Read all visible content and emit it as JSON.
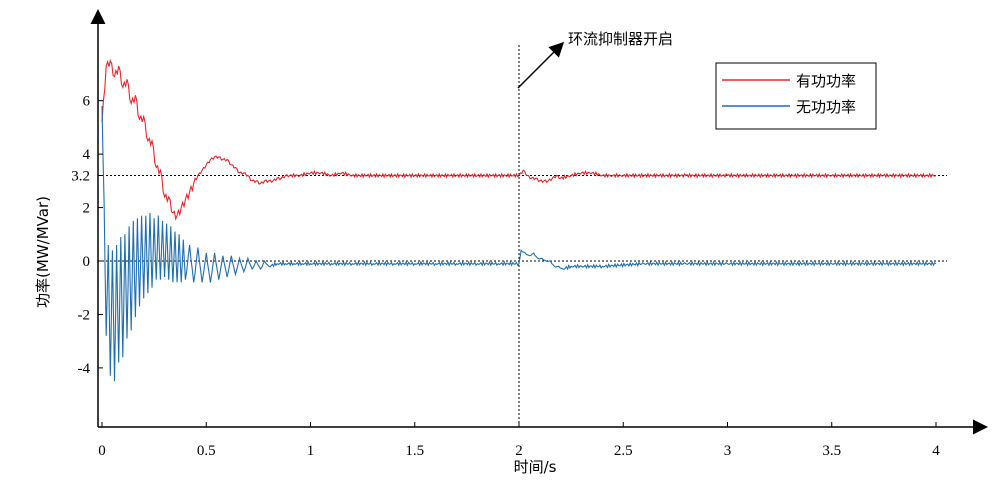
{
  "chart_data": {
    "type": "line",
    "xlabel": "时间/s",
    "ylabel": "功率(MW/MVar)",
    "xlim": [
      0,
      4.2
    ],
    "ylim": [
      -6.2,
      9.3
    ],
    "x_ticks": [
      0,
      0.5,
      1,
      1.5,
      2,
      2.5,
      3,
      3.5,
      4
    ],
    "x_tick_labels": [
      "0",
      "0.5",
      "1",
      "1.5",
      "2",
      "2.5",
      "3",
      "3.5",
      "4"
    ],
    "y_ticks": [
      -4,
      -2,
      0,
      2,
      3.2,
      4,
      6
    ],
    "y_tick_labels": [
      "-4",
      "-2",
      "0",
      "2",
      "3.2",
      "4",
      "6"
    ],
    "grid": false,
    "legend_position": "top-right",
    "reference_lines": [
      {
        "axis": "y",
        "value": 3.2,
        "style": "dotted"
      },
      {
        "axis": "y",
        "value": 0,
        "style": "dotted"
      },
      {
        "axis": "x",
        "value": 2,
        "style": "dotted"
      }
    ],
    "annotation": {
      "text": "环流抑制器开启",
      "points_to_x": 2
    },
    "series": [
      {
        "name": "有功功率",
        "color": "#e8262a",
        "x": [
          0,
          0.02,
          0.04,
          0.06,
          0.08,
          0.1,
          0.12,
          0.14,
          0.16,
          0.18,
          0.2,
          0.22,
          0.24,
          0.26,
          0.28,
          0.3,
          0.32,
          0.34,
          0.36,
          0.38,
          0.4,
          0.42,
          0.44,
          0.46,
          0.48,
          0.5,
          0.52,
          0.54,
          0.56,
          0.58,
          0.6,
          0.62,
          0.64,
          0.66,
          0.68,
          0.7,
          0.72,
          0.74,
          0.76,
          0.78,
          0.8,
          0.82,
          0.84,
          0.86,
          0.88,
          0.9,
          0.95,
          1.0,
          1.05,
          1.1,
          1.15,
          1.2,
          1.3,
          1.4,
          1.5,
          1.6,
          1.7,
          1.8,
          1.9,
          2.0,
          2.02,
          2.04,
          2.06,
          2.08,
          2.1,
          2.12,
          2.14,
          2.16,
          2.18,
          2.2,
          2.25,
          2.3,
          2.35,
          2.4,
          2.45,
          2.5,
          2.6,
          2.8,
          3.0,
          3.5,
          4.0
        ],
        "y": [
          5.2,
          7.3,
          7.5,
          6.9,
          7.3,
          6.5,
          6.8,
          5.9,
          6.2,
          5.3,
          5.4,
          4.5,
          4.5,
          3.5,
          3.4,
          2.4,
          2.4,
          1.8,
          1.7,
          2.0,
          2.3,
          2.6,
          2.9,
          3.2,
          3.4,
          3.6,
          3.8,
          3.9,
          3.9,
          3.8,
          3.8,
          3.6,
          3.5,
          3.3,
          3.3,
          3.2,
          3.0,
          3.0,
          2.9,
          3.0,
          3.0,
          3.0,
          3.1,
          3.1,
          3.2,
          3.2,
          3.2,
          3.3,
          3.3,
          3.2,
          3.3,
          3.2,
          3.2,
          3.2,
          3.2,
          3.2,
          3.2,
          3.2,
          3.2,
          3.2,
          3.4,
          3.2,
          3.1,
          3.1,
          3.0,
          3.0,
          3.0,
          3.1,
          3.2,
          3.1,
          3.2,
          3.3,
          3.3,
          3.2,
          3.2,
          3.2,
          3.2,
          3.2,
          3.2,
          3.2,
          3.2
        ]
      },
      {
        "name": "无功功率",
        "color": "#1f6faf",
        "x": [
          0,
          0.01,
          0.02,
          0.03,
          0.04,
          0.05,
          0.06,
          0.07,
          0.08,
          0.09,
          0.1,
          0.11,
          0.12,
          0.13,
          0.14,
          0.15,
          0.16,
          0.17,
          0.18,
          0.19,
          0.2,
          0.21,
          0.22,
          0.23,
          0.24,
          0.25,
          0.26,
          0.27,
          0.28,
          0.29,
          0.3,
          0.31,
          0.32,
          0.33,
          0.34,
          0.35,
          0.36,
          0.37,
          0.38,
          0.39,
          0.4,
          0.42,
          0.44,
          0.46,
          0.48,
          0.5,
          0.52,
          0.54,
          0.56,
          0.58,
          0.6,
          0.62,
          0.64,
          0.66,
          0.68,
          0.7,
          0.72,
          0.74,
          0.76,
          0.78,
          0.8,
          0.84,
          0.88,
          0.92,
          0.96,
          1.0,
          1.1,
          1.2,
          1.3,
          1.4,
          1.5,
          1.6,
          1.7,
          1.8,
          1.9,
          2.0,
          2.01,
          2.03,
          2.05,
          2.07,
          2.09,
          2.11,
          2.13,
          2.15,
          2.17,
          2.19,
          2.21,
          2.25,
          2.3,
          2.4,
          2.6,
          2.8,
          3.0,
          3.5,
          4.0
        ],
        "y": [
          5.8,
          2.2,
          -2.8,
          0.6,
          -4.3,
          0.4,
          -4.5,
          0.6,
          -3.8,
          0.9,
          -3.6,
          1.0,
          -2.9,
          1.3,
          -2.6,
          1.5,
          -2.1,
          1.6,
          -1.7,
          1.7,
          -1.4,
          1.7,
          -1.2,
          1.8,
          -1.0,
          1.6,
          -0.7,
          1.7,
          -0.7,
          1.5,
          -0.6,
          1.4,
          -0.7,
          1.3,
          -0.8,
          1.1,
          -0.8,
          1.0,
          -0.8,
          0.8,
          -0.7,
          0.6,
          -0.8,
          0.5,
          -0.8,
          0.3,
          -0.8,
          0.3,
          -0.7,
          0.2,
          -0.6,
          0.2,
          -0.5,
          0.1,
          -0.4,
          0.1,
          -0.3,
          0.0,
          -0.3,
          0.0,
          -0.2,
          -0.1,
          -0.1,
          -0.1,
          -0.1,
          -0.1,
          -0.1,
          -0.1,
          -0.1,
          -0.1,
          -0.1,
          -0.1,
          -0.1,
          -0.1,
          -0.1,
          -0.1,
          0.4,
          0.3,
          0.2,
          0.3,
          0.1,
          0.1,
          0.0,
          0.0,
          -0.2,
          -0.2,
          -0.3,
          -0.2,
          -0.2,
          -0.2,
          -0.1,
          -0.1,
          -0.1,
          -0.1,
          -0.1
        ]
      }
    ]
  },
  "legend": {
    "items": [
      {
        "label": "有功功率",
        "color": "#e8262a"
      },
      {
        "label": "无功功率",
        "color": "#1f6faf"
      }
    ]
  },
  "annotation_text": "环流抑制器开启"
}
